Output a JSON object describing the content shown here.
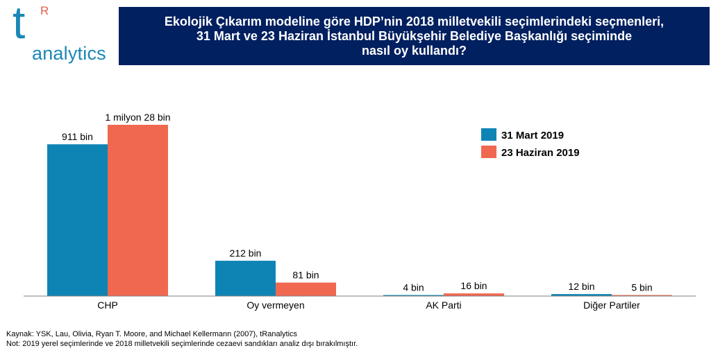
{
  "logo": {
    "letter": "t",
    "superscript": "R",
    "word": "analytics"
  },
  "title_lines": [
    "Ekolojik Çıkarım modeline göre HDP’nin 2018 milletvekili seçimlerindeki seçmenleri,",
    "31 Mart ve 23 Haziran İstanbul Büyükşehir Belediye Başkanlığı seçiminde",
    "nasıl oy kullandı?"
  ],
  "chart_data": {
    "type": "bar",
    "title": "Ekolojik Çıkarım modeline göre HDP’nin 2018 milletvekili seçimlerindeki seçmenleri, 31 Mart ve 23 Haziran İstanbul Büyükşehir Belediye Başkanlığı seçiminde nasıl oy kullandı?",
    "categories": [
      "CHP",
      "Oy vermeyen",
      "AK Parti",
      "Diğer Partiler"
    ],
    "series": [
      {
        "name": "31 Mart 2019",
        "color": "#0e84b5",
        "values": [
          911,
          212,
          4,
          12
        ],
        "labels": [
          "911 bin",
          "212 bin",
          "4 bin",
          "12 bin"
        ]
      },
      {
        "name": "23 Haziran 2019",
        "color": "#f0684f",
        "values": [
          1028,
          81,
          16,
          5
        ],
        "labels": [
          "1 milyon 28 bin",
          "81 bin",
          "16 bin",
          "5 bin"
        ]
      }
    ],
    "unit": "bin",
    "ylim": [
      0,
      1100
    ],
    "grid": false,
    "legend_position": "top-right"
  },
  "footer": {
    "source": "Kaynak: YSK, Lau, Olivia, Ryan T. Moore, and Michael Kellermann (2007), tRanalytics",
    "note": "Not: 2019 yerel seçimlerinde ve 2018 milletvekili seçimlerinde cezaevi sandıkları analiz dışı bırakılmıştır."
  }
}
